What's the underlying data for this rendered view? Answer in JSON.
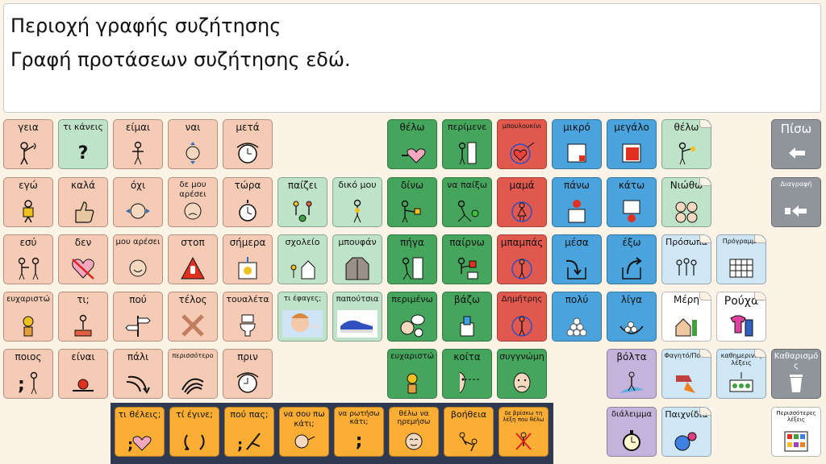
{
  "message": {
    "line1": "Περιοχή γραφής συζήτησης",
    "line2": "Γραφή προτάσεων συζήτησης εδώ."
  },
  "colors": {
    "peach": "#f6cbb5",
    "mint": "#bfe3c8",
    "green": "#46a55d",
    "red": "#e0584e",
    "blue": "#4aa3dc",
    "light_blue": "#cfe6f4",
    "purple": "#c6b3dc",
    "grey": "#8f959b",
    "orange": "#fbad34",
    "bottom_bar": "#2f3a52"
  },
  "tiles": {
    "geia": "γεια",
    "ti_kaneis": "τι κάνεις",
    "eimai": "είμαι",
    "nai": "ναι",
    "meta": "μετά",
    "ego": "εγώ",
    "kala": "καλά",
    "ochi": "όχι",
    "de_mou_aresei": "δε μου αρέσει",
    "tora": "τώρα",
    "esy": "εσύ",
    "den": "δεν",
    "mou_aresei": "μου αρέσει",
    "stop": "στοπ",
    "simera": "σήμερα",
    "efcharisto_1": "ευχαριστώ",
    "ti": "τι;",
    "pou": "πού",
    "telos": "τέλος",
    "toualeta": "τουαλέτα",
    "poios": "ποιος",
    "einai": "είναι",
    "pali": "πάλι",
    "perissotero": "περισσότερο",
    "prin": "πριν",
    "paizei": "παίζει",
    "diko_mou": "δικό μου",
    "scholeio": "σχολείο",
    "boufan": "μπουφάν",
    "ti_efages": "τι έφαγες;",
    "papoutsia": "παπούτσια",
    "thelo_1": "θέλω",
    "perimene": "περίμενε",
    "bouloukini": "μπουλουκίνι",
    "dino": "δίνω",
    "na_paixo": "να παίξω",
    "mama": "μαμά",
    "pigа": "πήγα",
    "pairno": "παίρνω",
    "babas": "μπαμπάς",
    "perimeno": "περιμένω",
    "vazo": "βάζω",
    "dimitris": "Δημήτρης",
    "efcharisto_2": "ευχαριστώ",
    "koita": "κοίτα",
    "syngnomi": "συγγνώμη",
    "mikro": "μικρό",
    "megalo": "μεγάλο",
    "thelo_folder": "θέλω",
    "pano": "πάνω",
    "kato": "κάτω",
    "niotho": "Νιώθω",
    "mesa": "μέσα",
    "exo": "έξω",
    "prosopa": "Πρόσωπα",
    "programma": "Πρόγραμμα",
    "poly": "πολύ",
    "liga": "λίγα",
    "meri": "Μέρη",
    "roucha": "Ρούχα",
    "volta": "βόλτα",
    "fagito_pota": "Φαγητό/Ποτά",
    "kathimerines_lexeis": "καθημερινές λέξεις",
    "dialeimma": "διάλειμμα",
    "paichnidia": "Παιχνίδια"
  },
  "controls": {
    "back": "Πίσω",
    "delete": "Διαγραφή",
    "clear": "Καθαρισμός",
    "more_words": "Περισσότερες λέξεις"
  },
  "questions": {
    "ti_theleis": "τι θέλεις;",
    "ti_egine": "τί έγινε;",
    "pou_pas": "πού πας;",
    "na_sou_po": "να σου πω κάτι;",
    "na_rotiso": "να ρωτήσω κάτι;",
    "thelo_na_iremiso": "θέλω να ηρεμήσω",
    "voitheia": "βοήθεια",
    "de_vrisko": "δε βρίσκω τη λέξη που θέλω"
  }
}
